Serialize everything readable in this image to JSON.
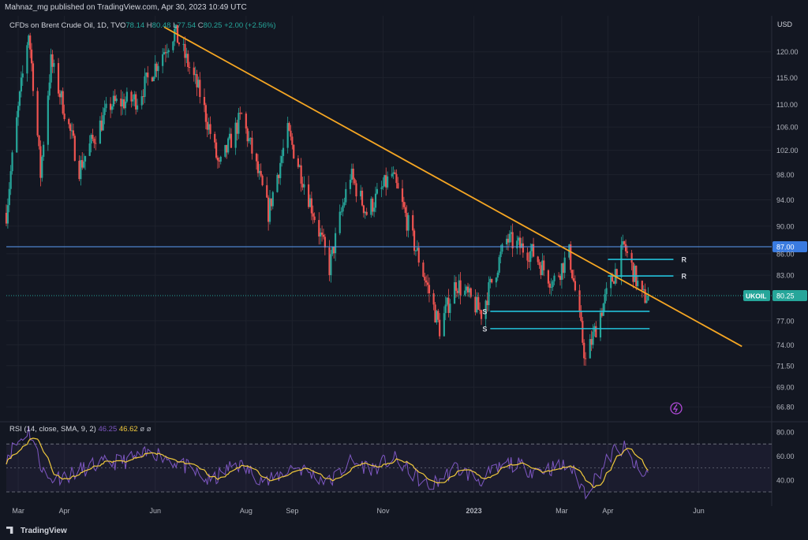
{
  "header": {
    "published_by": "Mahnaz_mg published on TradingView.com, Apr 30, 2023 10:49 UTC"
  },
  "footer": {
    "brand": "TradingView"
  },
  "chart_data": {
    "type": "candlestick",
    "symbol_line": "CFDs on Brent Crude Oil, 1D, TVC",
    "ohlc": {
      "o_label": "O",
      "o": "78.14",
      "h_label": "H",
      "h": "80.48",
      "l_label": "L",
      "l": "77.54",
      "c_label": "C",
      "c": "80.25",
      "change": "+2.00 (+2.56%)"
    },
    "currency": "USD",
    "y_ticks": [
      120.0,
      115.0,
      110.0,
      106.0,
      102.0,
      98.0,
      94.0,
      90.0,
      86.0,
      83.0,
      77.0,
      74.0,
      71.5,
      69.0,
      66.8
    ],
    "x_ticks": [
      "Mar",
      "Apr",
      "Jun",
      "Aug",
      "Sep",
      "Nov",
      "2023",
      "Mar",
      "Apr",
      "Jun"
    ],
    "x_tick_dates": [
      "2022-03-01",
      "2022-04-01",
      "2022-06-01",
      "2022-08-01",
      "2022-09-01",
      "2022-11-01",
      "2023-01-01",
      "2023-03-01",
      "2023-04-01",
      "2023-06-01"
    ],
    "price_path": [
      [
        "2022-02-21",
        92
      ],
      [
        "2022-03-08",
        124
      ],
      [
        "2022-03-16",
        98
      ],
      [
        "2022-03-23",
        118
      ],
      [
        "2022-04-11",
        99
      ],
      [
        "2022-05-02",
        110
      ],
      [
        "2022-05-20",
        111
      ],
      [
        "2022-06-14",
        124
      ],
      [
        "2022-07-01",
        112
      ],
      [
        "2022-07-14",
        99
      ],
      [
        "2022-07-29",
        108
      ],
      [
        "2022-08-16",
        92
      ],
      [
        "2022-08-29",
        105
      ],
      [
        "2022-09-26",
        84
      ],
      [
        "2022-10-10",
        98
      ],
      [
        "2022-10-21",
        92
      ],
      [
        "2022-11-07",
        98
      ],
      [
        "2022-11-21",
        88
      ],
      [
        "2022-12-09",
        76
      ],
      [
        "2022-12-20",
        82
      ],
      [
        "2023-01-06",
        78
      ],
      [
        "2023-01-23",
        88
      ],
      [
        "2023-02-10",
        86
      ],
      [
        "2023-02-23",
        82
      ],
      [
        "2023-03-06",
        86
      ],
      [
        "2023-03-17",
        72
      ],
      [
        "2023-03-27",
        78
      ],
      [
        "2023-04-12",
        87
      ],
      [
        "2023-04-24",
        80
      ],
      [
        "2023-04-28",
        80.25
      ]
    ],
    "trendline": {
      "color": "#f5a623",
      "from": [
        "2022-06-07",
        125
      ],
      "to": [
        "2023-06-30",
        73.8
      ]
    },
    "horizontal_levels": [
      {
        "price": 87.0,
        "label": "R",
        "color": "#5b9cf5",
        "from": "full",
        "to": "full",
        "badge": "87.00"
      },
      {
        "price": 85.2,
        "label": "R",
        "color": "#22c1d9",
        "from": "2023-04-01",
        "to": "2023-05-15"
      },
      {
        "price": 82.9,
        "label": "R",
        "color": "#22c1d9",
        "from": "2023-04-01",
        "to": "2023-05-15"
      },
      {
        "price": 78.2,
        "label": "S",
        "color": "#22c1d9",
        "from": "2023-01-12",
        "to": "2023-04-29"
      },
      {
        "price": 76.0,
        "label": "S",
        "color": "#22c1d9",
        "from": "2023-01-12",
        "to": "2023-04-29"
      }
    ],
    "last_price": {
      "ticker": "UKOIL",
      "value": "80.25"
    },
    "colors": {
      "up": "#26a69a",
      "down": "#ef5350",
      "background": "#131722",
      "grid": "#1e222d"
    },
    "rsi": {
      "label": "RSI (14, close, SMA, 9, 2)",
      "rsi_value": "46.25",
      "sma_value": "46.62",
      "extras": "ø  ø",
      "y_ticks": [
        80.0,
        60.0,
        40.0
      ],
      "band": [
        30,
        70
      ],
      "rsi_color": "#7e57c2",
      "sma_color": "#f0c93c",
      "path": [
        [
          "2022-02-21",
          60
        ],
        [
          "2022-03-08",
          82
        ],
        [
          "2022-03-20",
          40
        ],
        [
          "2022-04-05",
          45
        ],
        [
          "2022-04-20",
          52
        ],
        [
          "2022-05-12",
          56
        ],
        [
          "2022-06-01",
          63
        ],
        [
          "2022-06-20",
          52
        ],
        [
          "2022-07-08",
          38
        ],
        [
          "2022-07-25",
          54
        ],
        [
          "2022-08-16",
          38
        ],
        [
          "2022-09-02",
          52
        ],
        [
          "2022-09-26",
          38
        ],
        [
          "2022-10-10",
          55
        ],
        [
          "2022-10-25",
          50
        ],
        [
          "2022-11-08",
          58
        ],
        [
          "2022-12-02",
          34
        ],
        [
          "2022-12-20",
          50
        ],
        [
          "2023-01-05",
          40
        ],
        [
          "2023-01-25",
          54
        ],
        [
          "2023-02-10",
          48
        ],
        [
          "2023-03-06",
          52
        ],
        [
          "2023-03-17",
          30
        ],
        [
          "2023-04-05",
          64
        ],
        [
          "2023-04-12",
          66
        ],
        [
          "2023-04-24",
          42
        ],
        [
          "2023-04-28",
          46.25
        ]
      ]
    }
  }
}
